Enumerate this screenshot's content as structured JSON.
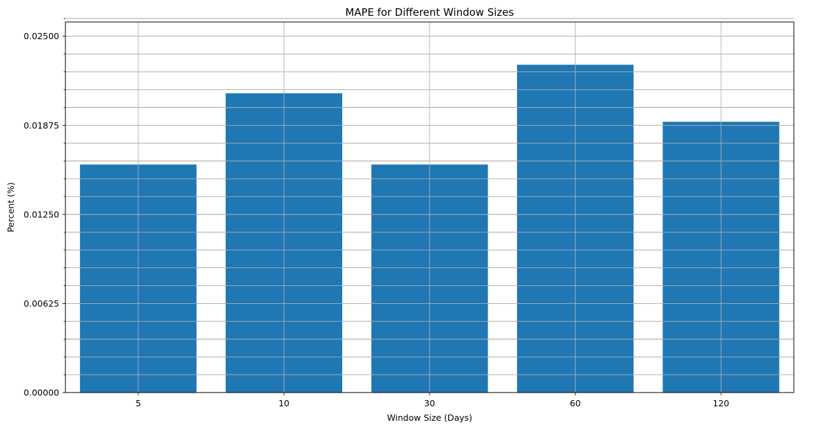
{
  "chart_data": {
    "type": "bar",
    "title": "MAPE for Different Window Sizes",
    "xlabel": "Window Size (Days)",
    "ylabel": "Percent (%)",
    "categories": [
      "5",
      "10",
      "30",
      "60",
      "120"
    ],
    "values": [
      0.016,
      0.021,
      0.016,
      0.023,
      0.019
    ],
    "ylim": [
      0,
      0.026
    ],
    "yticks": [
      0.0,
      0.00625,
      0.0125,
      0.01875,
      0.025
    ],
    "ytick_labels": [
      "0.00000",
      "0.00625",
      "0.01250",
      "0.01875",
      "0.02500"
    ],
    "y_minor_step": 0.00125,
    "grid": true,
    "bar_color": "#1f77b4",
    "grid_color": "#b0b0b0"
  }
}
